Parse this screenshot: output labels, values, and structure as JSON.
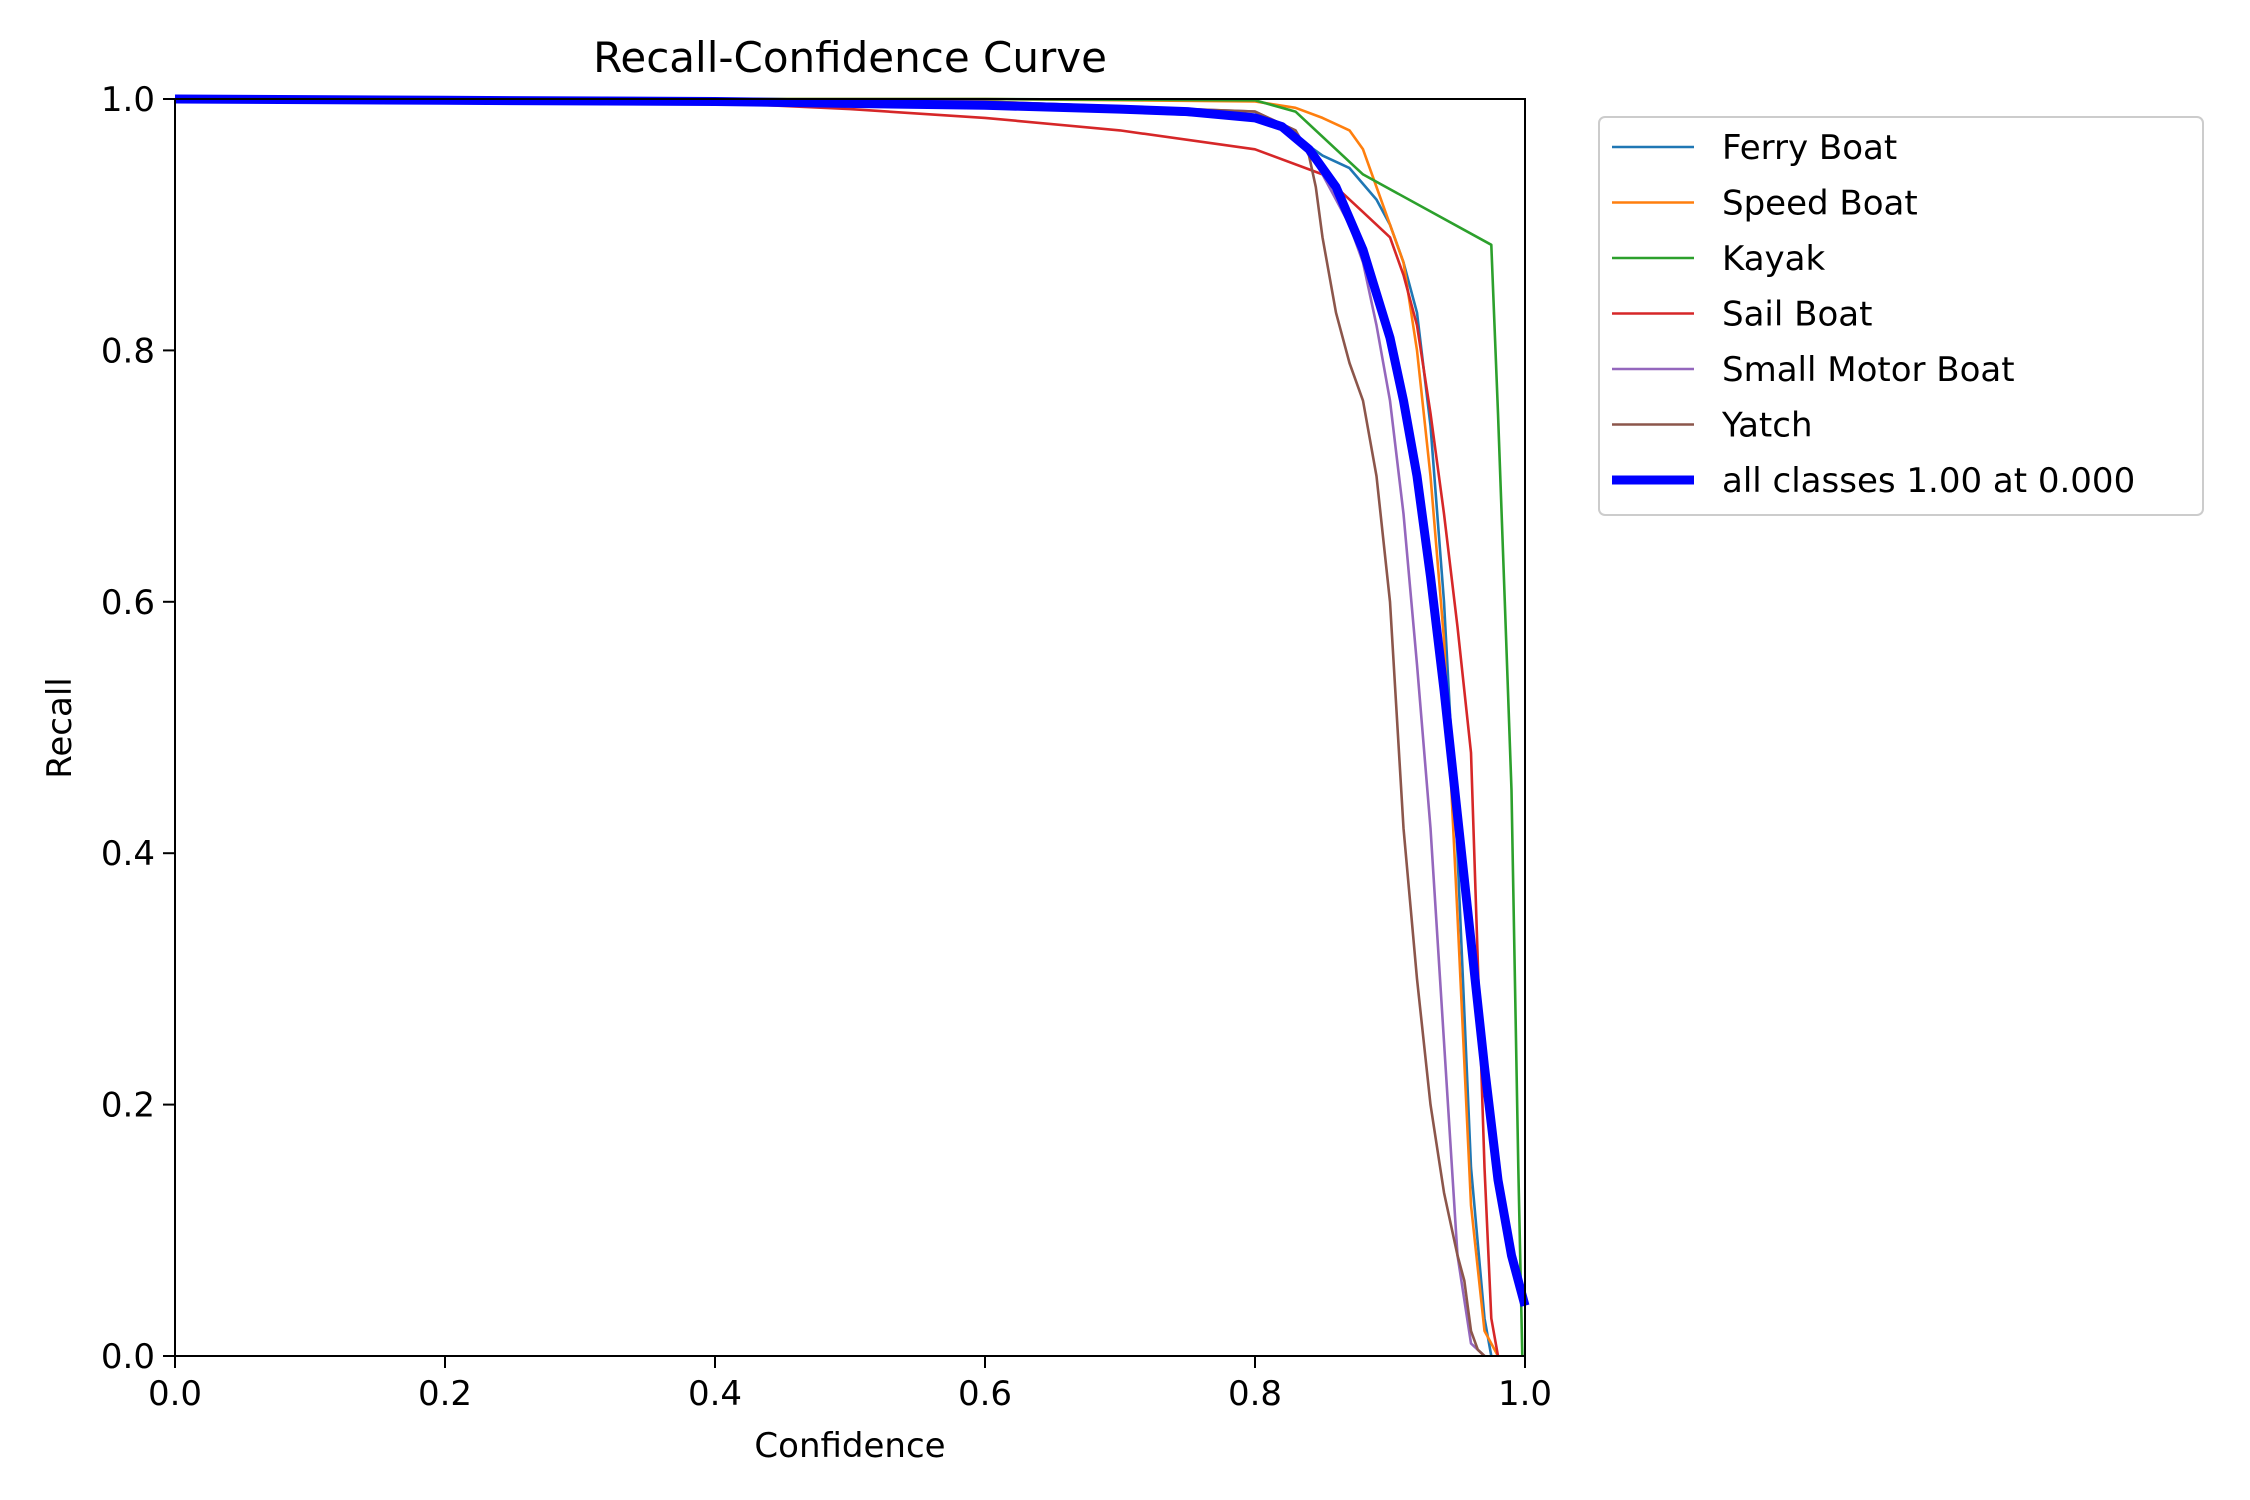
{
  "chart_data": {
    "type": "line",
    "title": "Recall-Confidence Curve",
    "xlabel": "Confidence",
    "ylabel": "Recall",
    "xlim": [
      0,
      1
    ],
    "ylim": [
      0,
      1
    ],
    "x_ticks": [
      "0.0",
      "0.2",
      "0.4",
      "0.6",
      "0.8",
      "1.0"
    ],
    "y_ticks": [
      "0.0",
      "0.2",
      "0.4",
      "0.6",
      "0.8",
      "1.0"
    ],
    "grid": false,
    "legend_position": "outside upper-right",
    "series": [
      {
        "name": "Ferry Boat",
        "color": "#1f77b4",
        "emphasis": false,
        "x": [
          0.0,
          0.2,
          0.4,
          0.6,
          0.7,
          0.8,
          0.82,
          0.85,
          0.87,
          0.89,
          0.9,
          0.91,
          0.92,
          0.93,
          0.94,
          0.95,
          0.96,
          0.97,
          0.975
        ],
        "y": [
          1.0,
          0.999,
          0.998,
          0.995,
          0.99,
          0.985,
          0.978,
          0.955,
          0.945,
          0.92,
          0.9,
          0.87,
          0.83,
          0.74,
          0.6,
          0.4,
          0.15,
          0.03,
          0.0
        ]
      },
      {
        "name": "Speed Boat",
        "color": "#ff7f0e",
        "emphasis": false,
        "x": [
          0.0,
          0.4,
          0.6,
          0.8,
          0.83,
          0.85,
          0.87,
          0.88,
          0.89,
          0.9,
          0.91,
          0.92,
          0.93,
          0.94,
          0.95,
          0.96,
          0.97,
          0.98
        ],
        "y": [
          1.0,
          1.0,
          1.0,
          0.998,
          0.993,
          0.985,
          0.975,
          0.96,
          0.93,
          0.9,
          0.87,
          0.8,
          0.7,
          0.57,
          0.35,
          0.12,
          0.02,
          0.0
        ]
      },
      {
        "name": "Kayak",
        "color": "#2ca02c",
        "emphasis": false,
        "x": [
          0.0,
          0.4,
          0.6,
          0.8,
          0.83,
          0.88,
          0.975,
          0.98,
          0.985,
          0.99,
          0.995,
          0.998
        ],
        "y": [
          1.0,
          1.0,
          1.0,
          0.999,
          0.99,
          0.94,
          0.884,
          0.75,
          0.6,
          0.45,
          0.15,
          0.0
        ]
      },
      {
        "name": "Sail Boat",
        "color": "#d62728",
        "emphasis": false,
        "x": [
          0.0,
          0.3,
          0.4,
          0.5,
          0.6,
          0.7,
          0.8,
          0.85,
          0.88,
          0.9,
          0.91,
          0.92,
          0.93,
          0.94,
          0.95,
          0.96,
          0.97,
          0.975,
          0.98
        ],
        "y": [
          1.0,
          0.999,
          0.997,
          0.992,
          0.985,
          0.975,
          0.96,
          0.94,
          0.91,
          0.89,
          0.86,
          0.82,
          0.75,
          0.67,
          0.58,
          0.48,
          0.15,
          0.03,
          0.0
        ]
      },
      {
        "name": "Small Motor Boat",
        "color": "#9467bd",
        "emphasis": false,
        "x": [
          0.0,
          0.4,
          0.6,
          0.8,
          0.83,
          0.85,
          0.87,
          0.88,
          0.89,
          0.9,
          0.91,
          0.92,
          0.93,
          0.94,
          0.95,
          0.96,
          0.97
        ],
        "y": [
          1.0,
          0.999,
          0.998,
          0.99,
          0.975,
          0.94,
          0.9,
          0.87,
          0.82,
          0.76,
          0.67,
          0.55,
          0.42,
          0.25,
          0.08,
          0.01,
          0.0
        ]
      },
      {
        "name": "Yatch",
        "color": "#8c564b",
        "emphasis": false,
        "x": [
          0.0,
          0.4,
          0.6,
          0.8,
          0.83,
          0.84,
          0.845,
          0.85,
          0.86,
          0.87,
          0.88,
          0.89,
          0.9,
          0.91,
          0.92,
          0.93,
          0.94,
          0.95,
          0.955,
          0.96,
          0.965,
          0.97
        ],
        "y": [
          1.0,
          0.999,
          0.998,
          0.99,
          0.975,
          0.955,
          0.93,
          0.89,
          0.83,
          0.79,
          0.76,
          0.7,
          0.6,
          0.42,
          0.3,
          0.2,
          0.13,
          0.08,
          0.06,
          0.02,
          0.005,
          0.0
        ]
      },
      {
        "name": "all classes 1.00 at 0.000",
        "color": "#0000ff",
        "emphasis": true,
        "x": [
          0.0,
          0.2,
          0.4,
          0.6,
          0.7,
          0.75,
          0.8,
          0.82,
          0.84,
          0.86,
          0.88,
          0.9,
          0.91,
          0.92,
          0.93,
          0.94,
          0.95,
          0.96,
          0.97,
          0.98,
          0.99,
          1.0
        ],
        "y": [
          1.0,
          0.999,
          0.998,
          0.995,
          0.992,
          0.99,
          0.985,
          0.978,
          0.96,
          0.93,
          0.88,
          0.81,
          0.76,
          0.7,
          0.62,
          0.53,
          0.43,
          0.33,
          0.23,
          0.14,
          0.08,
          0.04
        ]
      }
    ]
  }
}
